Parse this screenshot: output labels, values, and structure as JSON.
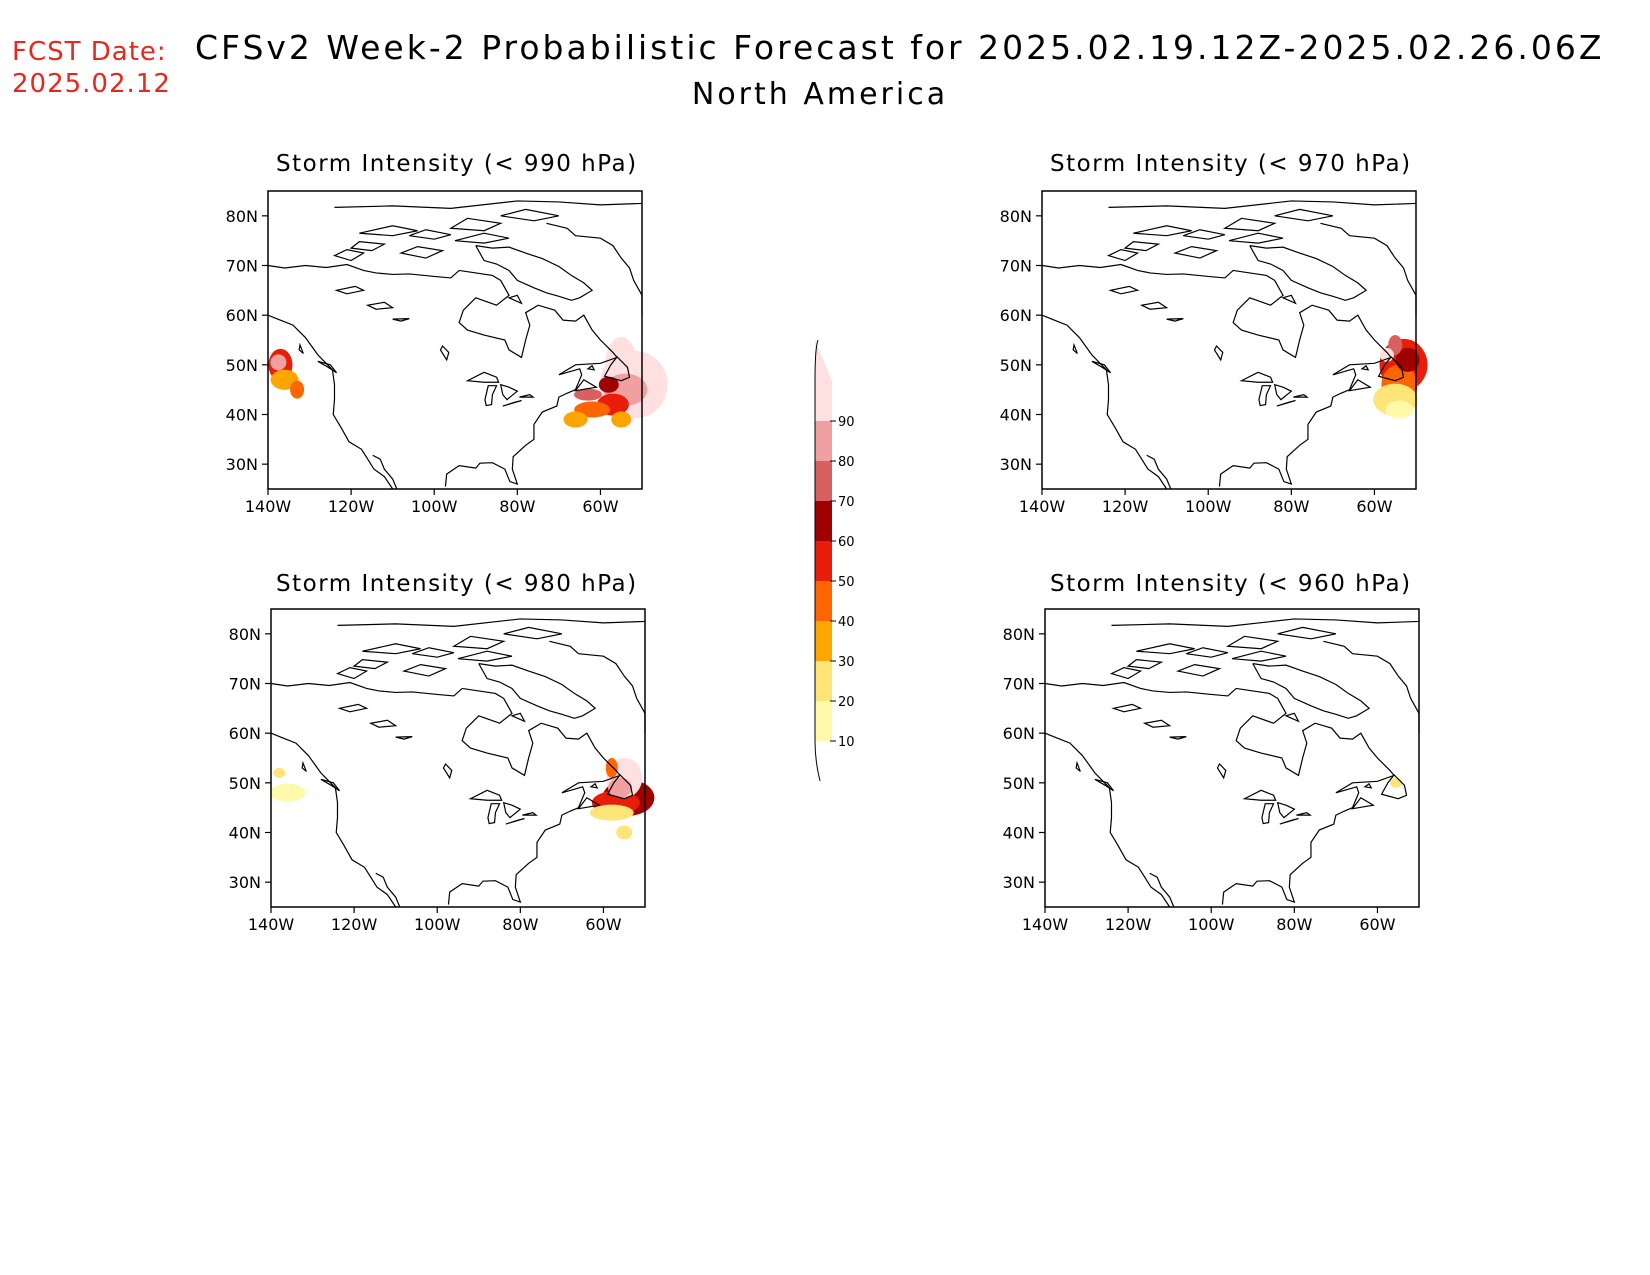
{
  "header": {
    "fcst_label": "FCST Date:",
    "fcst_date": "2025.02.12",
    "title": "CFSv2 Week-2 Probabilistic Forecast for 2025.02.19.12Z-2025.02.26.06Z",
    "subtitle": "North America"
  },
  "axes": {
    "lat_ticks": [
      "80N",
      "70N",
      "60N",
      "50N",
      "40N",
      "30N"
    ],
    "lon_ticks": [
      "140W",
      "120W",
      "100W",
      "80W",
      "60W"
    ]
  },
  "panels": [
    {
      "id": "990",
      "title": "Storm Intensity (< 990 hPa)"
    },
    {
      "id": "970",
      "title": "Storm Intensity (< 970 hPa)"
    },
    {
      "id": "980",
      "title": "Storm Intensity (< 980 hPa)"
    },
    {
      "id": "960",
      "title": "Storm Intensity (< 960 hPa)"
    }
  ],
  "colorbar": {
    "levels": [
      "10",
      "20",
      "30",
      "40",
      "50",
      "60",
      "70",
      "80",
      "90"
    ],
    "colors": [
      "#fffaaa",
      "#ffe478",
      "#ffa500",
      "#ff6600",
      "#e81e0a",
      "#a00000",
      "#d96060",
      "#f0a0a0",
      "#ffe0e0"
    ]
  }
}
